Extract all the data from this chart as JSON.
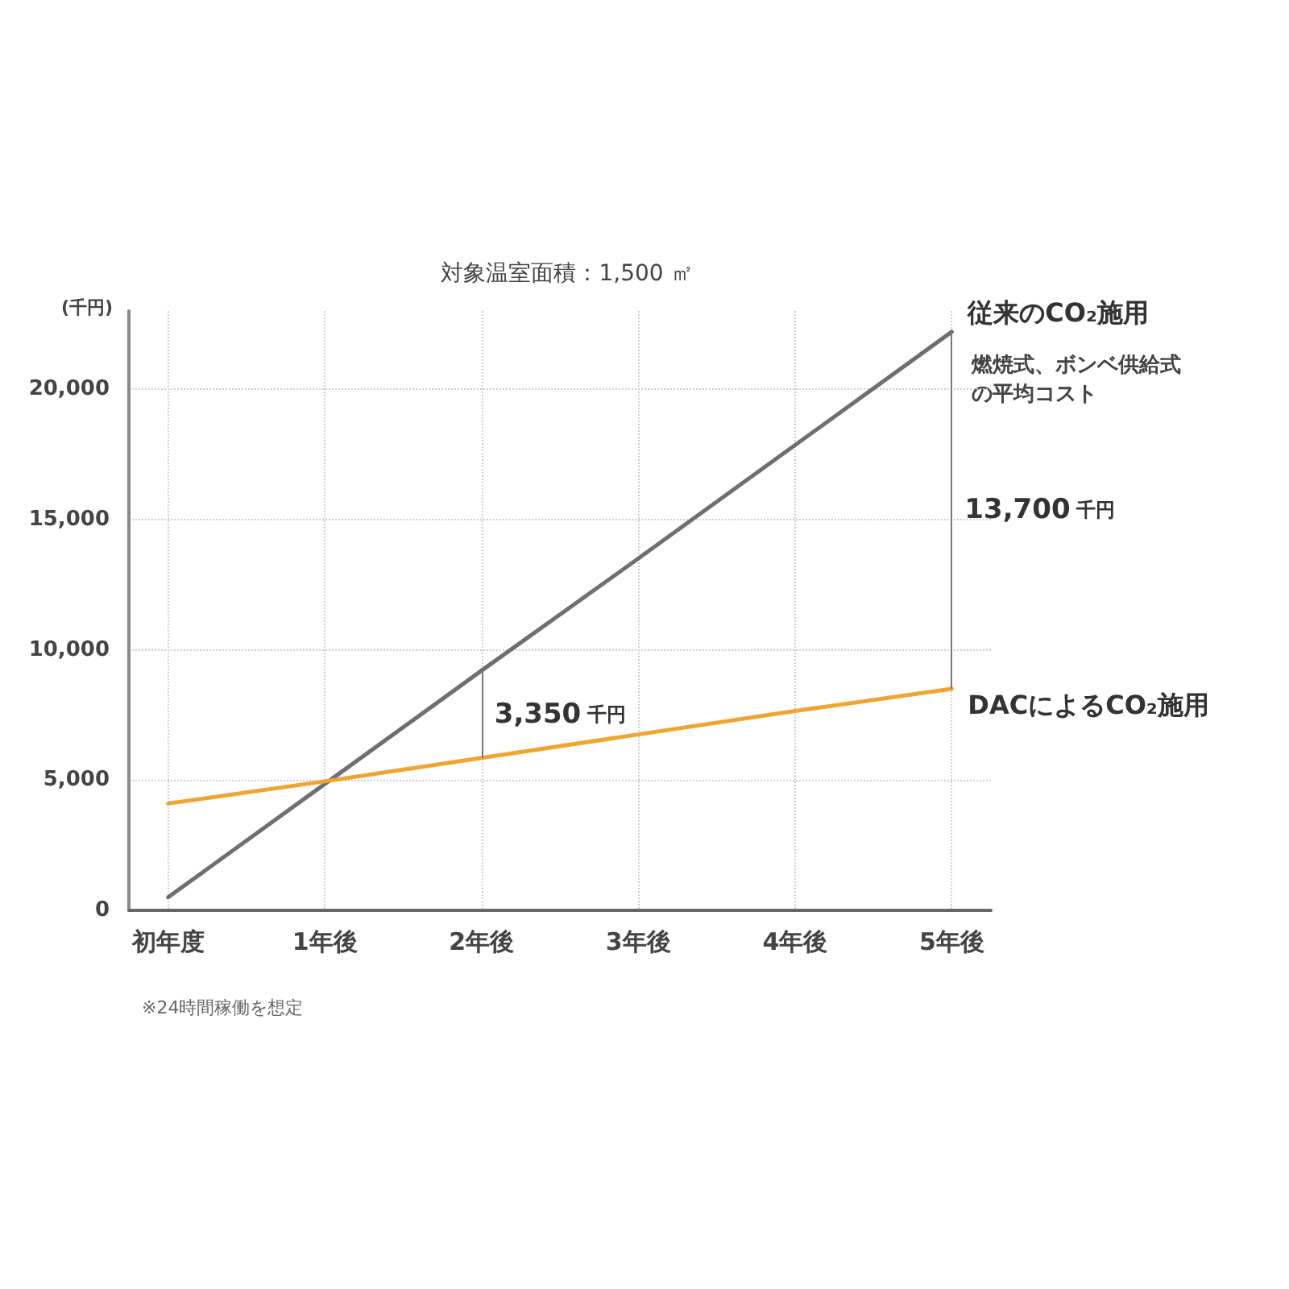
{
  "chart_data": {
    "type": "line",
    "title": "対象温室面積：1,500 ㎡",
    "ylabel": "(千円)",
    "categories": [
      "初年度",
      "1年後",
      "2年後",
      "3年後",
      "4年後",
      "5年後"
    ],
    "series": [
      {
        "name": "従来のCO₂施用",
        "color": "#6f6f6f",
        "values": [
          500,
          4850,
          9200,
          13500,
          17850,
          22200
        ]
      },
      {
        "name": "DACによるCO₂施用",
        "color": "#eea531",
        "values": [
          4100,
          4950,
          5850,
          6750,
          7650,
          8500
        ]
      }
    ],
    "ylim": [
      0,
      23000
    ],
    "yticks": [
      0,
      {
        "value": 5000,
        "label": "5,000"
      },
      {
        "value": 10000,
        "label": "10,000"
      },
      {
        "value": 15000,
        "label": "15,000"
      },
      {
        "value": 20000,
        "label": "20,000"
      }
    ],
    "grid": true,
    "marker": "none",
    "line_style": "solid",
    "annotations": [
      "燃焼式、ボンベ供給式の平均コスト",
      "※24時間稼働を想定",
      "3,350 千円",
      "13,700 千円"
    ]
  }
}
